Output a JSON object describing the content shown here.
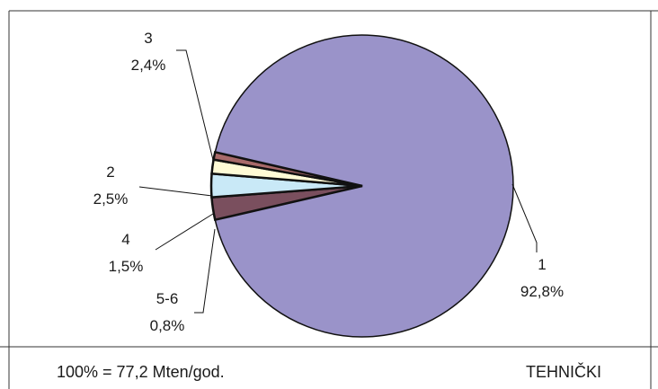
{
  "chart_data": {
    "type": "pie",
    "slices": [
      {
        "id": "1",
        "label": "1",
        "pct_label": "92,8%",
        "value": 92.8,
        "color": "#9a93c9"
      },
      {
        "id": "3",
        "label": "3",
        "pct_label": "2,4%",
        "value": 2.4,
        "color": "#7a4f5e"
      },
      {
        "id": "2",
        "label": "2",
        "pct_label": "2,5%",
        "value": 2.5,
        "color": "#c9e9f7"
      },
      {
        "id": "4",
        "label": "4",
        "pct_label": "1,5%",
        "value": 1.5,
        "color": "#fffbd6"
      },
      {
        "id": "5-6",
        "label": "5-6",
        "pct_label": "0,8%",
        "value": 0.8,
        "color": "#a86a6a"
      }
    ],
    "total_note": "100% = 77,2 Mten/god.",
    "category_note": "TEHNIČKI",
    "legend": "none"
  }
}
